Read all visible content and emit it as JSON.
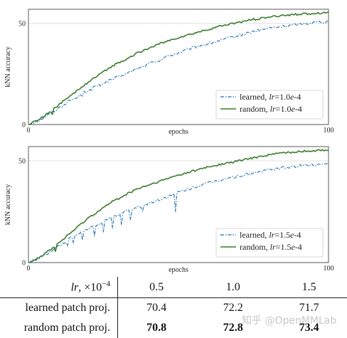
{
  "chart_data": [
    {
      "type": "line",
      "xlabel": "epochs",
      "ylabel": "kNN accuracy",
      "xlim": [
        0,
        100
      ],
      "ylim": [
        0,
        57
      ],
      "x_ticks": [
        "0",
        "100"
      ],
      "y_ticks": [
        "0",
        "50"
      ],
      "grid": "horizontal",
      "legend_position": "bottom-right",
      "series": [
        {
          "name": "learned, lr=1.0e-4",
          "legend_prefix": "learned, ",
          "legend_var": "lr",
          "legend_eq": "=1.0",
          "legend_e": "e",
          "legend_exp": "-4",
          "color": "#1f6fb4",
          "style": "dashdot",
          "x": [
            0,
            4,
            7,
            10,
            12,
            14,
            16,
            18,
            20,
            22,
            24,
            26,
            28,
            30,
            32,
            34,
            36,
            38,
            40,
            42,
            44,
            46,
            48,
            50,
            55,
            60,
            65,
            70,
            75,
            80,
            85,
            90,
            95,
            100
          ],
          "y": [
            0,
            2.5,
            5,
            8,
            10,
            12,
            13,
            15.5,
            17,
            18.5,
            20,
            21,
            22.5,
            23.5,
            25,
            26,
            27.5,
            28.5,
            30,
            31,
            32,
            33.5,
            34.5,
            35.5,
            38,
            40,
            42,
            44,
            46,
            47.5,
            48.5,
            49.5,
            50.5,
            51
          ],
          "dips": [
            [
              18,
              14
            ],
            [
              21,
              16.5
            ],
            [
              24,
              19
            ],
            [
              28,
              22
            ],
            [
              31,
              24
            ],
            [
              37,
              28
            ],
            [
              42,
              31
            ]
          ]
        },
        {
          "name": "random, lr=1.0e-4",
          "legend_prefix": "random, ",
          "legend_var": "lr",
          "legend_eq": "=1.0",
          "legend_e": "e",
          "legend_exp": "-4",
          "color": "#3a7d2c",
          "style": "solid",
          "x": [
            0,
            4,
            7,
            10,
            12,
            14,
            16,
            18,
            20,
            22,
            24,
            26,
            28,
            30,
            32,
            34,
            36,
            38,
            40,
            42,
            44,
            46,
            48,
            50,
            55,
            60,
            65,
            70,
            75,
            80,
            85,
            90,
            95,
            100
          ],
          "y": [
            0,
            3,
            6,
            9.5,
            12,
            14,
            16.5,
            19,
            21,
            23,
            25,
            27,
            29,
            30.5,
            32,
            33.5,
            35,
            36.5,
            37.5,
            39,
            40,
            41,
            42,
            43,
            45,
            47,
            49,
            50.5,
            52,
            53,
            54,
            54.5,
            55,
            55.5
          ],
          "dips": [
            [
              8,
              5
            ]
          ]
        }
      ]
    },
    {
      "type": "line",
      "xlabel": "epochs",
      "ylabel": "kNN accuracy",
      "xlim": [
        0,
        100
      ],
      "ylim": [
        0,
        57
      ],
      "x_ticks": [
        "0",
        "100"
      ],
      "y_ticks": [
        "0",
        "50"
      ],
      "grid": "horizontal",
      "legend_position": "bottom-right",
      "series": [
        {
          "name": "learned, lr=1.5e-4",
          "legend_prefix": "learned, ",
          "legend_var": "lr",
          "legend_eq": "=1.5",
          "legend_e": "e",
          "legend_exp": "-4",
          "color": "#1f6fb4",
          "style": "dashdot",
          "x": [
            0,
            4,
            7,
            10,
            12,
            14,
            16,
            18,
            20,
            22,
            24,
            26,
            28,
            30,
            32,
            34,
            36,
            38,
            40,
            42,
            44,
            46,
            48,
            50,
            52,
            55,
            60,
            65,
            70,
            75,
            80,
            85,
            90,
            95,
            100
          ],
          "y": [
            0,
            2.5,
            5,
            8,
            10,
            12,
            13.5,
            15,
            16.5,
            18,
            19.5,
            21,
            22,
            23.5,
            25,
            26,
            27,
            28,
            29,
            30,
            31,
            32,
            33.5,
            34.5,
            35.5,
            37,
            39,
            41,
            42.5,
            44,
            45.5,
            46.5,
            47.5,
            48,
            49
          ],
          "dips": [
            [
              13,
              8
            ],
            [
              15,
              9.5
            ],
            [
              18,
              11
            ],
            [
              22,
              13
            ],
            [
              25,
              15
            ],
            [
              28,
              17
            ],
            [
              31,
              18.5
            ],
            [
              34,
              21
            ],
            [
              38,
              25
            ],
            [
              49,
              25
            ]
          ]
        },
        {
          "name": "random, lr=1.5e-4",
          "legend_prefix": "random, ",
          "legend_var": "lr",
          "legend_eq": "=1.5",
          "legend_e": "e",
          "legend_exp": "-4",
          "color": "#3a7d2c",
          "style": "solid",
          "x": [
            0,
            4,
            7,
            10,
            12,
            14,
            16,
            18,
            20,
            22,
            24,
            26,
            28,
            30,
            32,
            34,
            36,
            38,
            40,
            42,
            44,
            46,
            48,
            50,
            55,
            60,
            65,
            70,
            75,
            80,
            85,
            90,
            95,
            100
          ],
          "y": [
            0,
            3,
            6,
            9.5,
            12,
            14.5,
            17,
            19.5,
            22,
            24,
            26,
            28,
            30,
            31.5,
            33,
            34.5,
            36,
            37,
            38,
            39,
            40,
            41,
            42,
            43,
            45,
            47,
            48.5,
            50,
            51.5,
            53,
            54,
            54.5,
            55,
            55.5
          ],
          "dips": [
            [
              9,
              5.5
            ]
          ]
        }
      ]
    },
    {
      "type": "table",
      "header": {
        "label_var": "lr",
        "label_rest": ", ×10",
        "label_exp": "−4",
        "cols": [
          "0.5",
          "1.0",
          "1.5"
        ]
      },
      "rows": [
        {
          "label": "learned patch proj.",
          "values": [
            "70.4",
            "72.2",
            "71.7"
          ],
          "bold": [
            false,
            false,
            false
          ]
        },
        {
          "label": "random patch proj.",
          "values": [
            "70.8",
            "72.8",
            "73.4"
          ],
          "bold": [
            true,
            true,
            true
          ]
        }
      ]
    }
  ],
  "watermark": "知乎 @OpenMMLab"
}
